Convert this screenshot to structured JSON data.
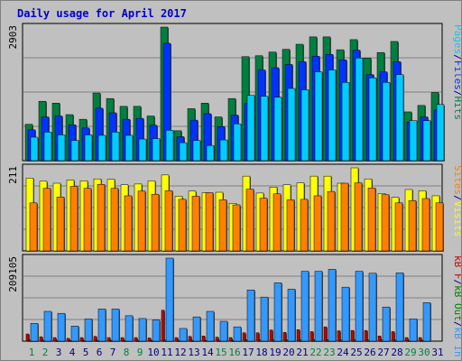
{
  "title": "Daily usage for April 2017",
  "colors": {
    "title": "#0000cc",
    "pages": "#00ccff",
    "files": "#0033ff",
    "hits": "#008040",
    "visits": "#ffff00",
    "sites": "#ff8000",
    "kbin": "#3399ff",
    "kbout": "#008000",
    "kbf": "#cc0000",
    "weekend": "#008040",
    "weekday": "#000080"
  },
  "chart_data": [
    {
      "type": "bar",
      "name": "hits-files-pages",
      "ymax_label": "2903",
      "ylim": [
        0,
        2903
      ],
      "legend": [
        {
          "text": "Pages",
          "color": "#00ccff"
        },
        {
          "text": "/",
          "color": "#000080"
        },
        {
          "text": "Files",
          "color": "#0033ff"
        },
        {
          "text": "/",
          "color": "#000080"
        },
        {
          "text": "Hits",
          "color": "#008040"
        }
      ],
      "categories": [
        "1",
        "2",
        "3",
        "4",
        "5",
        "6",
        "7",
        "8",
        "9",
        "10",
        "11",
        "12",
        "13",
        "14",
        "15",
        "16",
        "17",
        "18",
        "19",
        "20",
        "21",
        "22",
        "23",
        "24",
        "25",
        "26",
        "27",
        "28",
        "29",
        "30",
        "31"
      ],
      "series": [
        {
          "name": "Hits",
          "values": [
            790,
            1290,
            1250,
            1000,
            900,
            1470,
            1350,
            1180,
            1180,
            970,
            2903,
            650,
            1130,
            1250,
            950,
            1350,
            2260,
            2280,
            2360,
            2420,
            2530,
            2690,
            2690,
            2410,
            2630,
            2230,
            2350,
            2590,
            1060,
            1200,
            1480
          ]
        },
        {
          "name": "Files",
          "values": [
            670,
            950,
            970,
            780,
            710,
            1140,
            1040,
            900,
            920,
            770,
            2550,
            520,
            880,
            1020,
            740,
            990,
            1240,
            1970,
            2020,
            2090,
            2150,
            2270,
            2310,
            2190,
            2400,
            1870,
            1930,
            2150,
            840,
            950,
            1100
          ]
        },
        {
          "name": "Pages",
          "values": [
            510,
            620,
            560,
            440,
            560,
            550,
            620,
            550,
            470,
            480,
            660,
            390,
            440,
            330,
            450,
            800,
            1420,
            1400,
            1380,
            1570,
            1540,
            1930,
            1970,
            1700,
            2230,
            1800,
            1700,
            1870,
            870,
            870,
            1220
          ]
        }
      ]
    },
    {
      "type": "bar",
      "name": "visits-sites",
      "ymax_label": "211",
      "ylim": [
        0,
        211
      ],
      "legend": [
        {
          "text": "Sites",
          "color": "#ff8000"
        },
        {
          "text": "/",
          "color": "#000080"
        },
        {
          "text": "Visits",
          "color": "#ffff00"
        }
      ],
      "categories": [
        "1",
        "2",
        "3",
        "4",
        "5",
        "6",
        "7",
        "8",
        "9",
        "10",
        "11",
        "12",
        "13",
        "14",
        "15",
        "16",
        "17",
        "18",
        "19",
        "20",
        "21",
        "22",
        "23",
        "24",
        "25",
        "26",
        "27",
        "28",
        "29",
        "30",
        "31"
      ],
      "series": [
        {
          "name": "Visits",
          "values": [
            185,
            177,
            172,
            180,
            178,
            183,
            182,
            168,
            170,
            178,
            193,
            139,
            152,
            148,
            149,
            121,
            190,
            147,
            162,
            168,
            173,
            190,
            190,
            172,
            211,
            183,
            146,
            136,
            156,
            153,
            140
          ]
        },
        {
          "name": "Sites",
          "values": [
            122,
            159,
            137,
            164,
            159,
            169,
            159,
            140,
            152,
            144,
            153,
            131,
            139,
            148,
            130,
            117,
            157,
            134,
            145,
            130,
            131,
            140,
            151,
            172,
            173,
            160,
            143,
            122,
            128,
            133,
            122
          ]
        }
      ]
    },
    {
      "type": "bar",
      "name": "kb-in-out",
      "ymax_label": "209105",
      "ylim": [
        0,
        209105
      ],
      "legend": [
        {
          "text": "kB F",
          "color": "#cc0000"
        },
        {
          "text": "/",
          "color": "#000080"
        },
        {
          "text": "kB Out",
          "color": "#008000"
        },
        {
          "text": "/",
          "color": "#000080"
        },
        {
          "text": "kB In",
          "color": "#3399ff"
        }
      ],
      "categories": [
        "1",
        "2",
        "3",
        "4",
        "5",
        "6",
        "7",
        "8",
        "9",
        "10",
        "11",
        "12",
        "13",
        "14",
        "15",
        "16",
        "17",
        "18",
        "19",
        "20",
        "21",
        "22",
        "23",
        "24",
        "25",
        "26",
        "27",
        "28",
        "29",
        "30",
        "31"
      ],
      "series": [
        {
          "name": "kB In",
          "values": [
            45000,
            75000,
            70000,
            38000,
            56000,
            81000,
            81000,
            64000,
            57000,
            53000,
            209105,
            32000,
            61000,
            75000,
            50000,
            36000,
            129000,
            111000,
            147000,
            131000,
            176000,
            176000,
            181000,
            136000,
            176000,
            171000,
            86000,
            172000,
            56000,
            97000,
            0
          ]
        },
        {
          "name": "kB Out",
          "values": [
            3000,
            2000,
            2000,
            2000,
            2000,
            2000,
            2000,
            2000,
            2000,
            2000,
            3000,
            2000,
            2000,
            2000,
            2000,
            2000,
            4000,
            3000,
            3000,
            3000,
            3000,
            4000,
            4000,
            3000,
            4000,
            3000,
            3000,
            3000,
            2000,
            2000,
            0
          ]
        },
        {
          "name": "kB F",
          "values": [
            18000,
            11000,
            9000,
            7000,
            9000,
            12000,
            9000,
            9000,
            9000,
            8000,
            78000,
            9000,
            12000,
            13000,
            10000,
            9000,
            21000,
            21000,
            28000,
            22000,
            29000,
            24000,
            36000,
            26000,
            27000,
            27000,
            13000,
            24000,
            9000,
            9000,
            0
          ]
        }
      ]
    }
  ],
  "day_labels": [
    "1",
    "2",
    "3",
    "4",
    "5",
    "6",
    "7",
    "8",
    "9",
    "10",
    "11",
    "12",
    "13",
    "14",
    "15",
    "16",
    "17",
    "18",
    "19",
    "20",
    "21",
    "22",
    "23",
    "24",
    "25",
    "26",
    "27",
    "28",
    "29",
    "30",
    "31"
  ],
  "weekend_days": [
    "1",
    "2",
    "8",
    "9",
    "15",
    "16",
    "22",
    "23",
    "29",
    "30"
  ]
}
